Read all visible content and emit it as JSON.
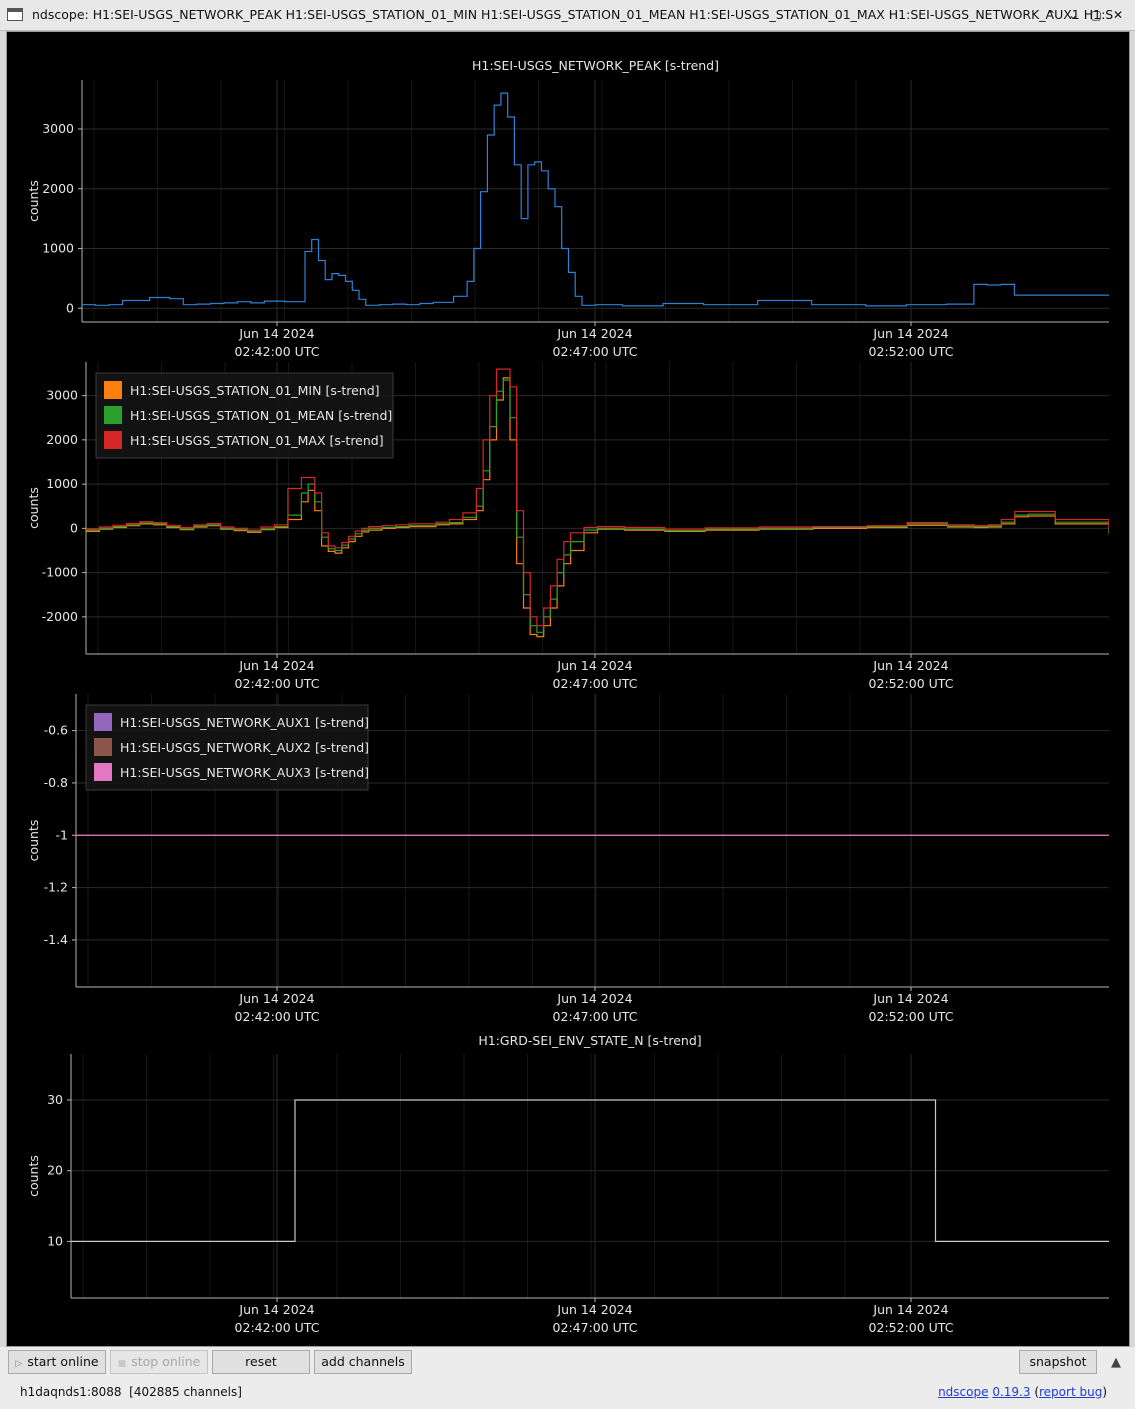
{
  "window": {
    "title": "ndscope: H1:SEI-USGS_NETWORK_PEAK H1:SEI-USGS_STATION_01_MIN H1:SEI-USGS_STATION_01_MEAN H1:SEI-USGS_STATION_01_MAX H1:SEI-USGS_NETWORK_AUX1 H1:S",
    "controls": {
      "minimize": "⌃",
      "restore": "⌄",
      "maximize": "▢",
      "close": "✕"
    }
  },
  "toolbar": {
    "start_online": "start online",
    "stop_online": "stop online",
    "reset": "reset",
    "add_channels": "add channels",
    "snapshot": "snapshot",
    "expand": "▲"
  },
  "status": {
    "server": "h1daqnds1:8088  [402885 channels]",
    "app_name": "ndscope",
    "version": "0.19.3",
    "report_bug": "report bug"
  },
  "theme": {
    "background": "#000000",
    "grid": "#2a2a2a",
    "axis": "#b4b4b4",
    "text": "#e6e6e6"
  },
  "x_ticks": [
    {
      "date": "Jun 14 2024",
      "time": "02:42:00 UTC"
    },
    {
      "date": "Jun 14 2024",
      "time": "02:47:00 UTC"
    },
    {
      "date": "Jun 14 2024",
      "time": "02:52:00 UTC"
    }
  ],
  "chart_data": [
    {
      "type": "line",
      "title": "H1:SEI-USGS_NETWORK_PEAK [s-trend]",
      "ylabel": "counts",
      "ylim": [
        -230,
        3820
      ],
      "yticks": [
        0,
        1000,
        2000,
        3000
      ],
      "grid": true,
      "legend": "none",
      "series": [
        {
          "color": "#2f80d8",
          "x": [
            0,
            10,
            20,
            30,
            50,
            65,
            75,
            85,
            95,
            105,
            115,
            125,
            135,
            150,
            160,
            165,
            170,
            175,
            180,
            185,
            190,
            195,
            200,
            205,
            210,
            220,
            230,
            240,
            250,
            260,
            275,
            285,
            290,
            295,
            300,
            305,
            310,
            315,
            320,
            325,
            330,
            335,
            340,
            345,
            350,
            355,
            360,
            365,
            370,
            380,
            400,
            430,
            460,
            500,
            540,
            580,
            610,
            640,
            660,
            670,
            680,
            690,
            720,
            760
          ],
          "y": [
            60,
            50,
            60,
            130,
            180,
            160,
            60,
            70,
            80,
            90,
            110,
            90,
            120,
            110,
            110,
            950,
            1150,
            800,
            480,
            580,
            550,
            450,
            300,
            150,
            50,
            60,
            70,
            60,
            80,
            100,
            200,
            450,
            1000,
            1950,
            2900,
            3400,
            3600,
            3200,
            2400,
            1500,
            2400,
            2450,
            2300,
            2000,
            1700,
            1000,
            600,
            200,
            50,
            60,
            40,
            80,
            60,
            130,
            60,
            40,
            60,
            70,
            400,
            390,
            400,
            220,
            220,
            220
          ]
        }
      ]
    },
    {
      "type": "line",
      "title": "",
      "ylabel": "counts",
      "ylim": [
        -2840,
        3760
      ],
      "yticks": [
        -2000,
        -1000,
        0,
        1000,
        2000,
        3000
      ],
      "grid": true,
      "legend": "top-left",
      "series": [
        {
          "name": "H1:SEI-USGS_STATION_01_MIN [s-trend]",
          "color": "#ff7f0e",
          "x": [
            0,
            10,
            20,
            30,
            40,
            50,
            60,
            70,
            80,
            90,
            100,
            110,
            120,
            130,
            140,
            150,
            160,
            165,
            170,
            175,
            180,
            185,
            190,
            195,
            200,
            205,
            210,
            220,
            230,
            240,
            250,
            260,
            270,
            280,
            290,
            295,
            300,
            305,
            310,
            315,
            320,
            325,
            330,
            335,
            340,
            345,
            350,
            355,
            360,
            370,
            380,
            400,
            430,
            460,
            500,
            540,
            580,
            610,
            640,
            660,
            670,
            680,
            690,
            700,
            720,
            760
          ],
          "y": [
            -70,
            -20,
            20,
            60,
            100,
            80,
            20,
            -30,
            30,
            60,
            -20,
            -50,
            -90,
            -30,
            20,
            200,
            600,
            860,
            400,
            -400,
            -520,
            -560,
            -440,
            -300,
            -180,
            -80,
            -40,
            0,
            20,
            40,
            40,
            80,
            100,
            200,
            400,
            1100,
            2000,
            2900,
            3400,
            2000,
            -800,
            -1800,
            -2400,
            -2450,
            -2200,
            -1800,
            -1300,
            -800,
            -500,
            -100,
            -20,
            -40,
            -70,
            -40,
            -20,
            0,
            20,
            70,
            30,
            20,
            30,
            100,
            260,
            280,
            100,
            -120
          ]
        },
        {
          "name": "H1:SEI-USGS_STATION_01_MEAN [s-trend]",
          "color": "#2ca02c",
          "x": [
            0,
            10,
            20,
            30,
            40,
            50,
            60,
            70,
            80,
            90,
            100,
            110,
            120,
            130,
            140,
            150,
            160,
            165,
            170,
            175,
            180,
            185,
            190,
            195,
            200,
            205,
            210,
            220,
            230,
            240,
            250,
            260,
            270,
            280,
            290,
            295,
            300,
            305,
            310,
            315,
            320,
            325,
            330,
            335,
            340,
            345,
            350,
            355,
            360,
            370,
            380,
            400,
            430,
            460,
            500,
            540,
            580,
            610,
            640,
            660,
            670,
            680,
            690,
            700,
            720,
            760
          ],
          "y": [
            -40,
            0,
            40,
            80,
            120,
            100,
            40,
            -10,
            50,
            80,
            0,
            -30,
            -70,
            -10,
            40,
            300,
            800,
            1000,
            600,
            -200,
            -460,
            -500,
            -380,
            -240,
            -120,
            -40,
            0,
            20,
            40,
            60,
            60,
            100,
            130,
            250,
            500,
            1300,
            2300,
            3100,
            3350,
            2500,
            -200,
            -1500,
            -2200,
            -2350,
            -2000,
            -1600,
            -1000,
            -600,
            -300,
            -40,
            0,
            -20,
            -50,
            -20,
            0,
            20,
            40,
            100,
            50,
            40,
            50,
            140,
            300,
            320,
            140,
            -60
          ]
        },
        {
          "name": "H1:SEI-USGS_STATION_01_MAX [s-trend]",
          "color": "#d62728",
          "x": [
            0,
            10,
            20,
            30,
            40,
            50,
            60,
            70,
            80,
            90,
            100,
            110,
            120,
            130,
            140,
            150,
            160,
            165,
            170,
            175,
            180,
            185,
            190,
            195,
            200,
            205,
            210,
            220,
            230,
            240,
            250,
            260,
            270,
            280,
            290,
            295,
            300,
            305,
            310,
            315,
            320,
            325,
            330,
            335,
            340,
            345,
            350,
            355,
            360,
            370,
            380,
            400,
            430,
            460,
            500,
            540,
            580,
            610,
            640,
            660,
            670,
            680,
            690,
            700,
            720,
            760
          ],
          "y": [
            -10,
            30,
            70,
            110,
            150,
            130,
            70,
            20,
            80,
            110,
            30,
            0,
            -40,
            30,
            80,
            900,
            1150,
            1150,
            800,
            -100,
            -400,
            -440,
            -320,
            -180,
            -60,
            0,
            40,
            60,
            80,
            100,
            100,
            140,
            200,
            350,
            900,
            2000,
            3000,
            3600,
            3600,
            3200,
            400,
            -1000,
            -2000,
            -2200,
            -1800,
            -1300,
            -700,
            -300,
            -100,
            20,
            40,
            20,
            -20,
            10,
            30,
            40,
            60,
            130,
            80,
            60,
            80,
            200,
            380,
            380,
            200,
            0
          ]
        }
      ]
    },
    {
      "type": "line",
      "title": "",
      "ylabel": "counts",
      "ylim": [
        -1.58,
        -0.46
      ],
      "yticks": [
        -1.4,
        -1.2,
        -1,
        -0.8,
        -0.6
      ],
      "grid": true,
      "legend": "top-left",
      "series": [
        {
          "name": "H1:SEI-USGS_NETWORK_AUX1 [s-trend]",
          "color": "#9467bd",
          "x": [
            0,
            760
          ],
          "y": [
            -1,
            -1
          ]
        },
        {
          "name": "H1:SEI-USGS_NETWORK_AUX2 [s-trend]",
          "color": "#8c564b",
          "x": [
            0,
            760
          ],
          "y": [
            -1,
            -1
          ]
        },
        {
          "name": "H1:SEI-USGS_NETWORK_AUX3 [s-trend]",
          "color": "#e377c2",
          "x": [
            0,
            760
          ],
          "y": [
            -1,
            -1
          ]
        }
      ]
    },
    {
      "type": "line",
      "title": "H1:GRD-SEI_ENV_STATE_N [s-trend]",
      "ylabel": "counts",
      "ylim": [
        2,
        36.5
      ],
      "yticks": [
        10,
        20,
        30
      ],
      "grid": true,
      "legend": "none",
      "series": [
        {
          "color": "#c8c8c8",
          "x": [
            0,
            164,
            164,
            633,
            633,
            760
          ],
          "y": [
            10,
            10,
            30,
            30,
            10,
            10
          ]
        }
      ]
    }
  ]
}
